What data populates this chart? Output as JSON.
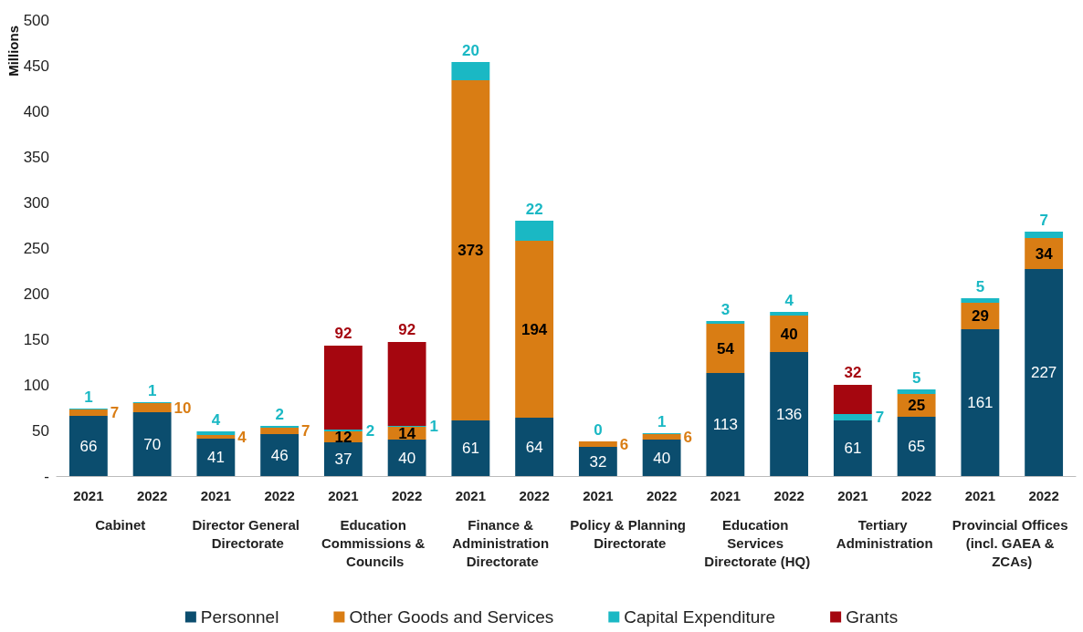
{
  "chart_data": {
    "type": "bar",
    "ylabel": "Millions",
    "stacked": true,
    "legend": "bottom",
    "categories": [
      "2021",
      "2022",
      "2021",
      "2022",
      "2021",
      "2022",
      "2021",
      "2022",
      "2021",
      "2022",
      "2021",
      "2022",
      "2021",
      "2022",
      "2021",
      "2022"
    ],
    "annotations": [
      "Cabinet",
      "Director General Directorate",
      "Education Commissions & Councils",
      "Finance & Administration Directorate",
      "Policy & Planning Directorate",
      "Education Services Directorate (HQ)",
      "Tertiary Administration",
      "Provincial Offices (incl. GAEA & ZCAs)"
    ],
    "ylim": [
      0,
      500
    ],
    "yticks": [
      {
        "value": 0,
        "label": "-"
      },
      50,
      100,
      150,
      200,
      250,
      300,
      350,
      400,
      450,
      500
    ],
    "data_labels": true,
    "series": [
      {
        "name": "Personnel",
        "color": "#0b4d6e",
        "values": [
          66,
          70,
          41,
          46,
          37,
          40,
          61,
          64,
          32,
          40,
          113,
          136,
          61,
          65,
          161,
          227
        ]
      },
      {
        "name": "Other Goods and Services",
        "color": "#d97d14",
        "values": [
          7,
          10,
          4,
          7,
          12,
          14,
          373,
          194,
          6,
          6,
          54,
          40,
          null,
          25,
          29,
          34
        ]
      },
      {
        "name": "Capital Expenditure",
        "color": "#1ab8c4",
        "values": [
          1,
          1,
          4,
          2,
          2,
          1,
          20,
          22,
          0,
          1,
          3,
          4,
          7,
          5,
          5,
          7
        ]
      },
      {
        "name": "Grants",
        "color": "#a5060f",
        "values": [
          null,
          null,
          null,
          null,
          92,
          92,
          null,
          null,
          null,
          null,
          null,
          null,
          32,
          null,
          null,
          null
        ]
      }
    ]
  }
}
